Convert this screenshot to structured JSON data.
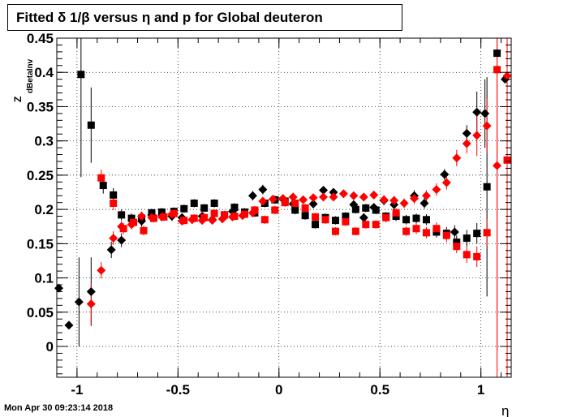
{
  "chart_data": {
    "type": "scatter",
    "title": "Fitted δ 1/β versus η and p for Global deuteron",
    "xlabel": "η",
    "ylabel": "Z",
    "ylabel_sub": "dBetaInv",
    "xlim": [
      -1.1,
      1.15
    ],
    "ylim": [
      -0.045,
      0.45
    ],
    "x_ticks": [
      "-1",
      "-0.5",
      "0",
      "0.5",
      "1"
    ],
    "y_ticks": [
      "0",
      "0.05",
      "0.1",
      "0.15",
      "0.2",
      "0.25",
      "0.3",
      "0.35",
      "0.4",
      "0.45"
    ],
    "grid": true,
    "timestamp": "Mon Apr 30 09:23:14 2018",
    "series": [
      {
        "marker": "diamond",
        "color": "#000000",
        "points": [
          {
            "x": -1.09,
            "y": 0.085,
            "e": 0.0
          },
          {
            "x": -1.04,
            "y": 0.031,
            "e": 0.0
          },
          {
            "x": -0.99,
            "y": 0.065,
            "e": 0.065
          },
          {
            "x": -0.93,
            "y": 0.08,
            "e": 0.05
          },
          {
            "x": -0.83,
            "y": 0.141,
            "e": 0.012
          },
          {
            "x": -0.78,
            "y": 0.155,
            "e": 0.01
          },
          {
            "x": -0.68,
            "y": 0.183,
            "e": 0.008
          },
          {
            "x": -0.63,
            "y": 0.192,
            "e": 0.007
          },
          {
            "x": -0.53,
            "y": 0.19,
            "e": 0.007
          },
          {
            "x": -0.48,
            "y": 0.188,
            "e": 0.006
          },
          {
            "x": -0.38,
            "y": 0.19,
            "e": 0.006
          },
          {
            "x": -0.33,
            "y": 0.185,
            "e": 0.006
          },
          {
            "x": -0.23,
            "y": 0.197,
            "e": 0.006
          },
          {
            "x": -0.13,
            "y": 0.22,
            "e": 0.007
          },
          {
            "x": -0.08,
            "y": 0.229,
            "e": 0.007
          },
          {
            "x": 0.02,
            "y": 0.215,
            "e": 0.006
          },
          {
            "x": 0.07,
            "y": 0.208,
            "e": 0.006
          },
          {
            "x": 0.17,
            "y": 0.208,
            "e": 0.006
          },
          {
            "x": 0.22,
            "y": 0.228,
            "e": 0.006
          },
          {
            "x": 0.27,
            "y": 0.225,
            "e": 0.006
          },
          {
            "x": 0.37,
            "y": 0.207,
            "e": 0.006
          },
          {
            "x": 0.42,
            "y": 0.188,
            "e": 0.006
          },
          {
            "x": 0.47,
            "y": 0.203,
            "e": 0.006
          },
          {
            "x": 0.52,
            "y": 0.213,
            "e": 0.007
          },
          {
            "x": 0.57,
            "y": 0.207,
            "e": 0.007
          },
          {
            "x": 0.67,
            "y": 0.22,
            "e": 0.008
          },
          {
            "x": 0.72,
            "y": 0.209,
            "e": 0.008
          },
          {
            "x": 0.82,
            "y": 0.251,
            "e": 0.008
          },
          {
            "x": 0.87,
            "y": 0.167,
            "e": 0.01
          },
          {
            "x": 0.93,
            "y": 0.311,
            "e": 0.012
          },
          {
            "x": 0.98,
            "y": 0.342,
            "e": 0.03
          },
          {
            "x": 1.02,
            "y": 0.34,
            "e": 0.05
          },
          {
            "x": 1.12,
            "y": 0.39,
            "e": 0.0
          }
        ]
      },
      {
        "marker": "square",
        "color": "#000000",
        "points": [
          {
            "x": -0.98,
            "y": 0.397,
            "e": 0.15
          },
          {
            "x": -0.93,
            "y": 0.323,
            "e": 0.055
          },
          {
            "x": -0.87,
            "y": 0.235,
            "e": 0.012
          },
          {
            "x": -0.82,
            "y": 0.221,
            "e": 0.01
          },
          {
            "x": -0.78,
            "y": 0.192,
            "e": 0.008
          },
          {
            "x": -0.73,
            "y": 0.187,
            "e": 0.007
          },
          {
            "x": -0.68,
            "y": 0.187,
            "e": 0.007
          },
          {
            "x": -0.63,
            "y": 0.195,
            "e": 0.006
          },
          {
            "x": -0.58,
            "y": 0.196,
            "e": 0.006
          },
          {
            "x": -0.52,
            "y": 0.197,
            "e": 0.006
          },
          {
            "x": -0.47,
            "y": 0.201,
            "e": 0.006
          },
          {
            "x": -0.42,
            "y": 0.209,
            "e": 0.006
          },
          {
            "x": -0.37,
            "y": 0.202,
            "e": 0.006
          },
          {
            "x": -0.32,
            "y": 0.209,
            "e": 0.006
          },
          {
            "x": -0.27,
            "y": 0.192,
            "e": 0.006
          },
          {
            "x": -0.22,
            "y": 0.203,
            "e": 0.006
          },
          {
            "x": -0.17,
            "y": 0.196,
            "e": 0.006
          },
          {
            "x": -0.12,
            "y": 0.195,
            "e": 0.006
          },
          {
            "x": -0.07,
            "y": 0.209,
            "e": 0.006
          },
          {
            "x": -0.02,
            "y": 0.214,
            "e": 0.006
          },
          {
            "x": 0.03,
            "y": 0.212,
            "e": 0.006
          },
          {
            "x": 0.08,
            "y": 0.199,
            "e": 0.006
          },
          {
            "x": 0.13,
            "y": 0.191,
            "e": 0.006
          },
          {
            "x": 0.18,
            "y": 0.178,
            "e": 0.006
          },
          {
            "x": 0.23,
            "y": 0.188,
            "e": 0.006
          },
          {
            "x": 0.28,
            "y": 0.184,
            "e": 0.006
          },
          {
            "x": 0.33,
            "y": 0.19,
            "e": 0.006
          },
          {
            "x": 0.38,
            "y": 0.2,
            "e": 0.006
          },
          {
            "x": 0.43,
            "y": 0.202,
            "e": 0.006
          },
          {
            "x": 0.48,
            "y": 0.199,
            "e": 0.006
          },
          {
            "x": 0.53,
            "y": 0.19,
            "e": 0.006
          },
          {
            "x": 0.58,
            "y": 0.19,
            "e": 0.007
          },
          {
            "x": 0.63,
            "y": 0.185,
            "e": 0.007
          },
          {
            "x": 0.68,
            "y": 0.187,
            "e": 0.007
          },
          {
            "x": 0.73,
            "y": 0.185,
            "e": 0.008
          },
          {
            "x": 0.78,
            "y": 0.167,
            "e": 0.008
          },
          {
            "x": 0.83,
            "y": 0.165,
            "e": 0.009
          },
          {
            "x": 0.88,
            "y": 0.152,
            "e": 0.01
          },
          {
            "x": 0.93,
            "y": 0.158,
            "e": 0.012
          },
          {
            "x": 0.98,
            "y": 0.165,
            "e": 0.015
          },
          {
            "x": 1.03,
            "y": 0.233,
            "e": 0.16
          },
          {
            "x": 1.08,
            "y": 0.428,
            "e": 0.0
          }
        ]
      },
      {
        "marker": "diamond",
        "color": "#ff0000",
        "points": [
          {
            "x": -0.93,
            "y": 0.062,
            "e": 0.03
          },
          {
            "x": -0.88,
            "y": 0.111,
            "e": 0.012
          },
          {
            "x": -0.82,
            "y": 0.158,
            "e": 0.01
          },
          {
            "x": -0.78,
            "y": 0.175,
            "e": 0.008
          },
          {
            "x": -0.73,
            "y": 0.178,
            "e": 0.007
          },
          {
            "x": -0.68,
            "y": 0.19,
            "e": 0.007
          },
          {
            "x": -0.63,
            "y": 0.188,
            "e": 0.007
          },
          {
            "x": -0.58,
            "y": 0.189,
            "e": 0.006
          },
          {
            "x": -0.53,
            "y": 0.193,
            "e": 0.006
          },
          {
            "x": -0.48,
            "y": 0.183,
            "e": 0.006
          },
          {
            "x": -0.43,
            "y": 0.185,
            "e": 0.006
          },
          {
            "x": -0.38,
            "y": 0.184,
            "e": 0.006
          },
          {
            "x": -0.33,
            "y": 0.184,
            "e": 0.006
          },
          {
            "x": -0.28,
            "y": 0.186,
            "e": 0.006
          },
          {
            "x": -0.23,
            "y": 0.189,
            "e": 0.006
          },
          {
            "x": -0.18,
            "y": 0.191,
            "e": 0.006
          },
          {
            "x": -0.13,
            "y": 0.195,
            "e": 0.006
          },
          {
            "x": -0.08,
            "y": 0.212,
            "e": 0.006
          },
          {
            "x": -0.03,
            "y": 0.215,
            "e": 0.006
          },
          {
            "x": 0.02,
            "y": 0.216,
            "e": 0.006
          },
          {
            "x": 0.07,
            "y": 0.218,
            "e": 0.006
          },
          {
            "x": 0.12,
            "y": 0.214,
            "e": 0.006
          },
          {
            "x": 0.17,
            "y": 0.217,
            "e": 0.006
          },
          {
            "x": 0.22,
            "y": 0.218,
            "e": 0.006
          },
          {
            "x": 0.27,
            "y": 0.218,
            "e": 0.006
          },
          {
            "x": 0.32,
            "y": 0.223,
            "e": 0.006
          },
          {
            "x": 0.37,
            "y": 0.22,
            "e": 0.006
          },
          {
            "x": 0.42,
            "y": 0.218,
            "e": 0.006
          },
          {
            "x": 0.47,
            "y": 0.221,
            "e": 0.006
          },
          {
            "x": 0.52,
            "y": 0.214,
            "e": 0.007
          },
          {
            "x": 0.57,
            "y": 0.213,
            "e": 0.007
          },
          {
            "x": 0.62,
            "y": 0.209,
            "e": 0.007
          },
          {
            "x": 0.67,
            "y": 0.216,
            "e": 0.008
          },
          {
            "x": 0.73,
            "y": 0.22,
            "e": 0.008
          },
          {
            "x": 0.78,
            "y": 0.229,
            "e": 0.009
          },
          {
            "x": 0.83,
            "y": 0.239,
            "e": 0.01
          },
          {
            "x": 0.88,
            "y": 0.275,
            "e": 0.012
          },
          {
            "x": 0.93,
            "y": 0.296,
            "e": 0.014
          },
          {
            "x": 0.98,
            "y": 0.308,
            "e": 0.03
          },
          {
            "x": 1.03,
            "y": 0.322,
            "e": 0.04
          },
          {
            "x": 1.08,
            "y": 0.264,
            "e": 0.27
          },
          {
            "x": 1.13,
            "y": 0.395,
            "e": 0.0
          }
        ]
      },
      {
        "marker": "square",
        "color": "#ff0000",
        "points": [
          {
            "x": -0.88,
            "y": 0.246,
            "e": 0.012
          },
          {
            "x": -0.82,
            "y": 0.209,
            "e": 0.01
          },
          {
            "x": -0.77,
            "y": 0.172,
            "e": 0.008
          },
          {
            "x": -0.72,
            "y": 0.181,
            "e": 0.007
          },
          {
            "x": -0.67,
            "y": 0.169,
            "e": 0.007
          },
          {
            "x": -0.62,
            "y": 0.187,
            "e": 0.006
          },
          {
            "x": -0.57,
            "y": 0.189,
            "e": 0.006
          },
          {
            "x": -0.52,
            "y": 0.194,
            "e": 0.006
          },
          {
            "x": -0.47,
            "y": 0.184,
            "e": 0.006
          },
          {
            "x": -0.42,
            "y": 0.187,
            "e": 0.006
          },
          {
            "x": -0.37,
            "y": 0.188,
            "e": 0.006
          },
          {
            "x": -0.32,
            "y": 0.194,
            "e": 0.006
          },
          {
            "x": -0.27,
            "y": 0.192,
            "e": 0.006
          },
          {
            "x": -0.22,
            "y": 0.19,
            "e": 0.006
          },
          {
            "x": -0.17,
            "y": 0.193,
            "e": 0.006
          },
          {
            "x": -0.12,
            "y": 0.199,
            "e": 0.006
          },
          {
            "x": -0.07,
            "y": 0.185,
            "e": 0.006
          },
          {
            "x": -0.02,
            "y": 0.199,
            "e": 0.006
          },
          {
            "x": 0.03,
            "y": 0.21,
            "e": 0.006
          },
          {
            "x": 0.08,
            "y": 0.209,
            "e": 0.006
          },
          {
            "x": 0.13,
            "y": 0.202,
            "e": 0.006
          },
          {
            "x": 0.18,
            "y": 0.189,
            "e": 0.006
          },
          {
            "x": 0.23,
            "y": 0.185,
            "e": 0.006
          },
          {
            "x": 0.28,
            "y": 0.168,
            "e": 0.006
          },
          {
            "x": 0.33,
            "y": 0.182,
            "e": 0.006
          },
          {
            "x": 0.38,
            "y": 0.168,
            "e": 0.006
          },
          {
            "x": 0.43,
            "y": 0.178,
            "e": 0.006
          },
          {
            "x": 0.48,
            "y": 0.178,
            "e": 0.006
          },
          {
            "x": 0.53,
            "y": 0.188,
            "e": 0.007
          },
          {
            "x": 0.58,
            "y": 0.195,
            "e": 0.007
          },
          {
            "x": 0.63,
            "y": 0.168,
            "e": 0.007
          },
          {
            "x": 0.68,
            "y": 0.172,
            "e": 0.008
          },
          {
            "x": 0.73,
            "y": 0.166,
            "e": 0.008
          },
          {
            "x": 0.78,
            "y": 0.172,
            "e": 0.009
          },
          {
            "x": 0.83,
            "y": 0.162,
            "e": 0.01
          },
          {
            "x": 0.88,
            "y": 0.146,
            "e": 0.01
          },
          {
            "x": 0.93,
            "y": 0.134,
            "e": 0.012
          },
          {
            "x": 0.98,
            "y": 0.131,
            "e": 0.015
          },
          {
            "x": 1.03,
            "y": 0.166,
            "e": 0.02
          },
          {
            "x": 1.08,
            "y": 0.404,
            "e": 0.5
          },
          {
            "x": 1.13,
            "y": 0.272,
            "e": 0.36
          }
        ]
      }
    ]
  }
}
